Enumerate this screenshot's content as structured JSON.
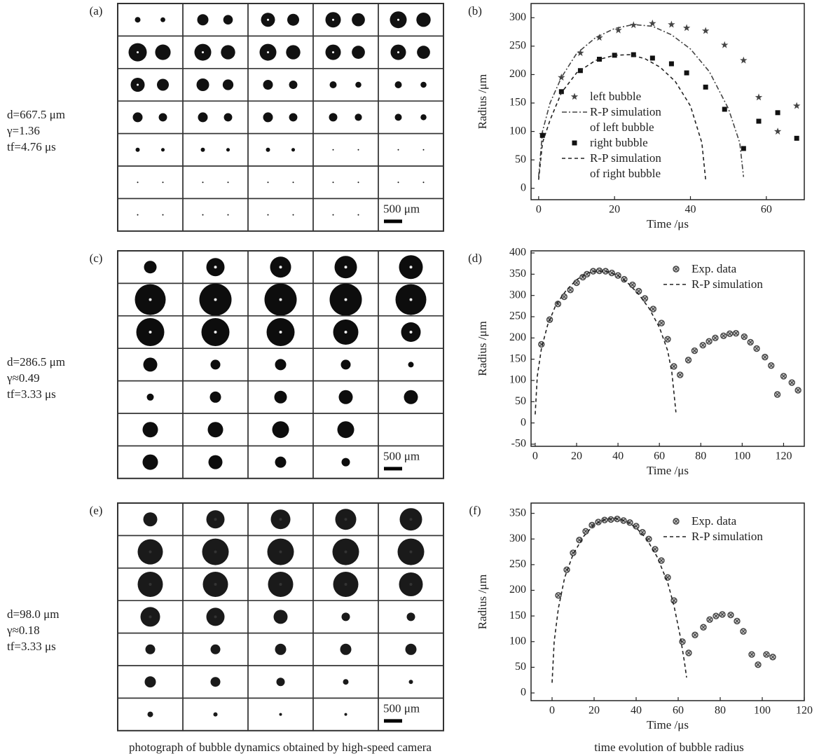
{
  "chart_data": [
    {
      "type": "line",
      "label": "(b)",
      "xlabel": "Time /μs",
      "ylabel": "Radius /μm",
      "xlim": [
        -2,
        70
      ],
      "xticks": [
        0,
        20,
        40,
        60
      ],
      "ylim": [
        -20,
        325
      ],
      "yticks": [
        0,
        50,
        100,
        150,
        200,
        250,
        300
      ],
      "legend": "center-left",
      "series": [
        {
          "name": "left bubble",
          "color": "#444",
          "marker": "star",
          "x": [
            1,
            6,
            11,
            16,
            21,
            25,
            30,
            35,
            39,
            44,
            49,
            54,
            58,
            63,
            68
          ],
          "values": [
            95,
            195,
            238,
            265,
            278,
            287,
            290,
            288,
            282,
            277,
            252,
            225,
            160,
            100,
            145
          ]
        },
        {
          "name": "R-P simulation of left bubble",
          "color": "#444",
          "line_style": "dashdot",
          "x": [
            0,
            1,
            3,
            6,
            10,
            15,
            20,
            25,
            30,
            35,
            40,
            45,
            50,
            53,
            54
          ],
          "values": [
            20,
            100,
            150,
            195,
            237,
            265,
            281,
            288,
            285,
            270,
            245,
            205,
            140,
            80,
            20
          ]
        },
        {
          "name": "right bubble",
          "color": "#111",
          "marker": "square",
          "x": [
            1,
            6,
            11,
            16,
            20,
            25,
            30,
            35,
            39,
            44,
            49,
            54,
            58,
            63,
            68
          ],
          "values": [
            93,
            170,
            207,
            227,
            234,
            235,
            229,
            219,
            203,
            178,
            139,
            70,
            118,
            133,
            88
          ]
        },
        {
          "name": "R-P simulation of right bubble",
          "color": "#222",
          "line_style": "dashed",
          "x": [
            0,
            1,
            3,
            6,
            10,
            15,
            20,
            24,
            28,
            32,
            36,
            40,
            43,
            44
          ],
          "values": [
            15,
            80,
            120,
            168,
            203,
            225,
            234,
            235,
            228,
            213,
            188,
            145,
            80,
            15
          ]
        }
      ]
    },
    {
      "type": "line",
      "label": "(d)",
      "xlabel": "Time /μs",
      "ylabel": "Radius /μm",
      "xlim": [
        -2,
        130
      ],
      "xticks": [
        0,
        20,
        40,
        60,
        80,
        100,
        120
      ],
      "ylim": [
        -55,
        405
      ],
      "yticks": [
        -50,
        0,
        50,
        100,
        150,
        200,
        250,
        300,
        350,
        400
      ],
      "legend": "upper-right",
      "series": [
        {
          "name": "Exp. data",
          "color": "#444",
          "marker": "circle-x",
          "x": [
            3,
            7,
            11,
            14,
            17,
            20,
            23,
            25,
            28,
            31,
            34,
            37,
            40,
            43,
            47,
            50,
            53,
            57,
            61,
            64,
            67,
            70,
            74,
            77,
            81,
            84,
            87,
            91,
            94,
            97,
            101,
            104,
            107,
            111,
            114,
            117,
            120,
            124,
            127
          ],
          "values": [
            185,
            243,
            280,
            297,
            313,
            330,
            343,
            350,
            357,
            358,
            357,
            353,
            347,
            338,
            325,
            310,
            293,
            268,
            235,
            197,
            133,
            113,
            148,
            170,
            183,
            192,
            200,
            205,
            210,
            211,
            203,
            190,
            175,
            155,
            135,
            67,
            110,
            95,
            77
          ]
        },
        {
          "name": "R-P simulation",
          "color": "#222",
          "line_style": "dashed",
          "x": [
            0,
            1,
            3,
            6,
            10,
            15,
            20,
            25,
            30,
            35,
            40,
            45,
            50,
            55,
            60,
            64,
            66,
            68
          ],
          "values": [
            20,
            110,
            175,
            230,
            278,
            312,
            337,
            352,
            358,
            356,
            347,
            328,
            303,
            270,
            225,
            170,
            120,
            25
          ]
        }
      ]
    },
    {
      "type": "line",
      "label": "(f)",
      "xlabel": "Time /μs",
      "ylabel": "Radius /μm",
      "xlim": [
        -10,
        120
      ],
      "xticks": [
        0,
        20,
        40,
        60,
        80,
        100,
        120
      ],
      "ylim": [
        -15,
        370
      ],
      "yticks": [
        0,
        50,
        100,
        150,
        200,
        250,
        300,
        350
      ],
      "legend": "upper-right",
      "series": [
        {
          "name": "Exp. data",
          "color": "#444",
          "marker": "circle-x",
          "x": [
            3,
            7,
            10,
            13,
            16,
            19,
            22,
            25,
            28,
            31,
            34,
            37,
            40,
            43,
            46,
            49,
            52,
            55,
            58,
            62,
            65,
            68,
            72,
            75,
            78,
            81,
            85,
            88,
            91,
            95,
            98,
            102,
            105
          ],
          "values": [
            190,
            240,
            273,
            298,
            315,
            327,
            333,
            337,
            338,
            339,
            336,
            332,
            325,
            313,
            300,
            280,
            258,
            225,
            180,
            100,
            78,
            113,
            128,
            143,
            150,
            153,
            152,
            140,
            120,
            75,
            55,
            75,
            70
          ]
        },
        {
          "name": "R-P simulation",
          "color": "#222",
          "line_style": "dashed",
          "x": [
            0,
            1,
            3,
            6,
            10,
            15,
            20,
            25,
            30,
            35,
            40,
            45,
            50,
            55,
            58,
            61,
            63,
            64
          ],
          "values": [
            20,
            100,
            165,
            225,
            270,
            305,
            328,
            338,
            340,
            335,
            322,
            300,
            265,
            215,
            170,
            110,
            60,
            30
          ]
        }
      ]
    }
  ],
  "photo_panels": [
    {
      "label": "(a)",
      "params": [
        "d=667.5 μm",
        "γ=1.36",
        "tf=4.76 μs"
      ],
      "scale_label": "500 μm"
    },
    {
      "label": "(c)",
      "params": [
        "d=286.5 μm",
        "γ≈0.49",
        "tf=3.33 μs"
      ],
      "scale_label": "500 μm"
    },
    {
      "label": "(e)",
      "params": [
        "d=98.0 μm",
        "γ≈0.18",
        "tf=3.33 μs"
      ],
      "scale_label": "500 μm"
    }
  ],
  "captions": [
    "photograph of bubble dynamics obtained by high-speed camera",
    "time evolution of bubble radius"
  ]
}
